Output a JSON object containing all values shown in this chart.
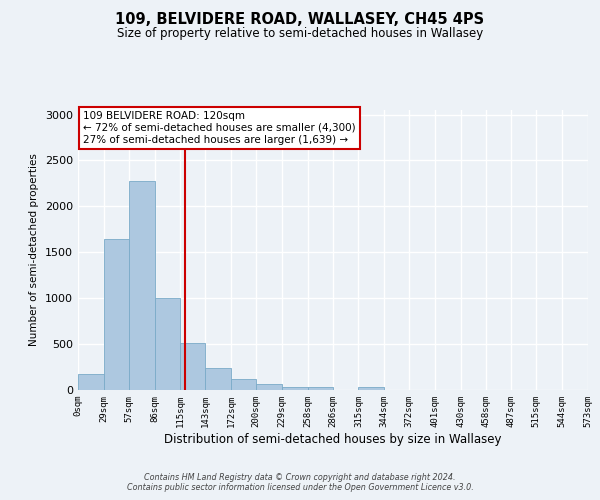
{
  "title": "109, BELVIDERE ROAD, WALLASEY, CH45 4PS",
  "subtitle": "Size of property relative to semi-detached houses in Wallasey",
  "xlabel": "Distribution of semi-detached houses by size in Wallasey",
  "ylabel": "Number of semi-detached properties",
  "bin_edges": [
    0,
    29,
    57,
    86,
    115,
    143,
    172,
    200,
    229,
    258,
    286,
    315,
    344,
    372,
    401,
    430,
    458,
    487,
    515,
    544,
    573
  ],
  "bar_heights": [
    175,
    1650,
    2275,
    1005,
    510,
    240,
    115,
    65,
    35,
    35,
    0,
    30,
    0,
    0,
    0,
    0,
    0,
    0,
    0,
    0
  ],
  "bar_color": "#adc8e0",
  "bar_edge_color": "#7aaac8",
  "property_size": 120,
  "property_line_color": "#cc0000",
  "ylim": [
    0,
    3050
  ],
  "yticks": [
    0,
    500,
    1000,
    1500,
    2000,
    2500,
    3000
  ],
  "annotation_title": "109 BELVIDERE ROAD: 120sqm",
  "annotation_line1": "← 72% of semi-detached houses are smaller (4,300)",
  "annotation_line2": "27% of semi-detached houses are larger (1,639) →",
  "annotation_box_facecolor": "#ffffff",
  "annotation_box_edgecolor": "#cc0000",
  "footer_line1": "Contains HM Land Registry data © Crown copyright and database right 2024.",
  "footer_line2": "Contains public sector information licensed under the Open Government Licence v3.0.",
  "background_color": "#edf2f7",
  "grid_color": "#ffffff",
  "tick_labels": [
    "0sqm",
    "29sqm",
    "57sqm",
    "86sqm",
    "115sqm",
    "143sqm",
    "172sqm",
    "200sqm",
    "229sqm",
    "258sqm",
    "286sqm",
    "315sqm",
    "344sqm",
    "372sqm",
    "401sqm",
    "430sqm",
    "458sqm",
    "487sqm",
    "515sqm",
    "544sqm",
    "573sqm"
  ]
}
